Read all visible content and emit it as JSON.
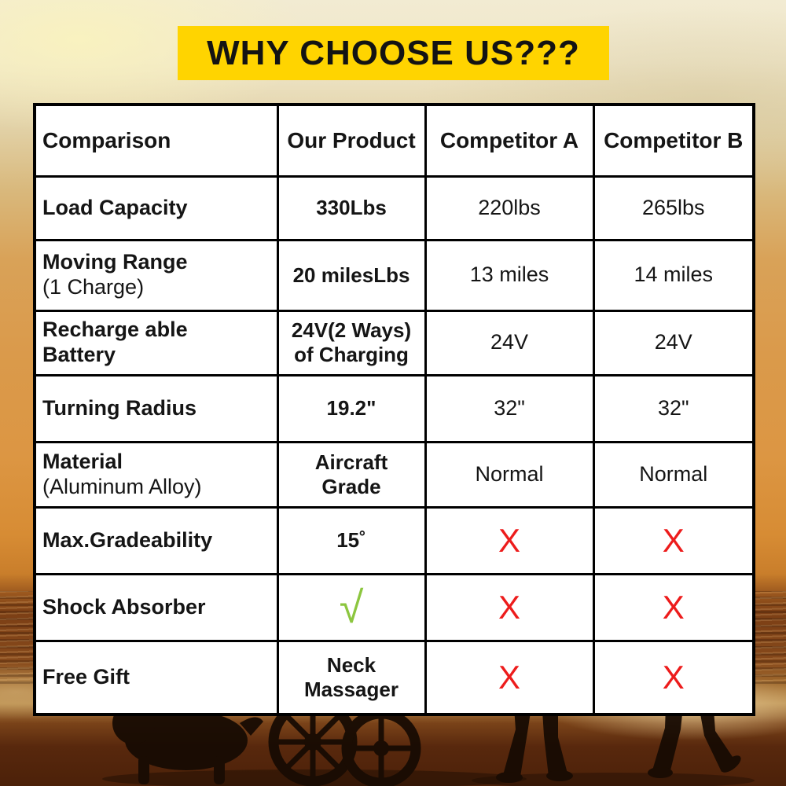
{
  "banner": {
    "text": "WHY CHOOSE US???",
    "bg_color": "#FFD400",
    "text_color": "#131313"
  },
  "symbol_colors": {
    "check_green": "#8CC63F",
    "cross_red": "#ED1C1C"
  },
  "comparison_table": {
    "columns": [
      "Comparison",
      "Our Product",
      "Competitor A",
      "Competitor B"
    ],
    "rows": [
      {
        "feature": {
          "lines": [
            {
              "text": "Load Capacity",
              "bold": true
            }
          ]
        },
        "ours": {
          "lines": [
            {
              "text": "330Lbs",
              "bold": true
            }
          ]
        },
        "competitor_a": {
          "lines": [
            {
              "text": "220lbs"
            }
          ]
        },
        "competitor_b": {
          "lines": [
            {
              "text": "265lbs"
            }
          ]
        }
      },
      {
        "feature": {
          "lines": [
            {
              "text": "Moving Range",
              "bold": true
            },
            {
              "text": "(1 Charge)"
            }
          ]
        },
        "ours": {
          "lines": [
            {
              "text": "20 milesLbs",
              "bold": true
            }
          ]
        },
        "competitor_a": {
          "lines": [
            {
              "text": "13 miles"
            }
          ]
        },
        "competitor_b": {
          "lines": [
            {
              "text": "14 miles"
            }
          ]
        }
      },
      {
        "feature": {
          "lines": [
            {
              "text": "Recharge able",
              "bold": true
            },
            {
              "text": "Battery",
              "bold": true
            }
          ]
        },
        "ours": {
          "lines": [
            {
              "text": "24V(2 Ways)",
              "bold": true
            },
            {
              "text": "of Charging",
              "bold": true
            }
          ]
        },
        "competitor_a": {
          "lines": [
            {
              "text": "24V"
            }
          ]
        },
        "competitor_b": {
          "lines": [
            {
              "text": "24V"
            }
          ]
        }
      },
      {
        "feature": {
          "lines": [
            {
              "text": "Turning Radius",
              "bold": true
            }
          ]
        },
        "ours": {
          "lines": [
            {
              "text": "19.2\"",
              "bold": true
            }
          ]
        },
        "competitor_a": {
          "lines": [
            {
              "text": "32\""
            }
          ]
        },
        "competitor_b": {
          "lines": [
            {
              "text": "32\""
            }
          ]
        }
      },
      {
        "feature": {
          "lines": [
            {
              "text": "Material",
              "bold": true
            },
            {
              "text": "(Aluminum Alloy)"
            }
          ]
        },
        "ours": {
          "lines": [
            {
              "text": "Aircraft",
              "bold": true
            },
            {
              "text": "Grade",
              "bold": true
            }
          ]
        },
        "competitor_a": {
          "lines": [
            {
              "text": "Normal"
            }
          ]
        },
        "competitor_b": {
          "lines": [
            {
              "text": "Normal"
            }
          ]
        }
      },
      {
        "feature": {
          "lines": [
            {
              "text": "Max.Gradeability",
              "bold": true
            }
          ]
        },
        "ours": {
          "lines": [
            {
              "text": "15˚",
              "bold": true
            }
          ]
        },
        "competitor_a": {
          "symbol": "cross",
          "text": "X"
        },
        "competitor_b": {
          "symbol": "cross",
          "text": "X"
        }
      },
      {
        "feature": {
          "lines": [
            {
              "text": "Shock Absorber",
              "bold": true
            }
          ]
        },
        "ours": {
          "symbol": "check",
          "text": "√"
        },
        "competitor_a": {
          "symbol": "cross",
          "text": "X"
        },
        "competitor_b": {
          "symbol": "cross",
          "text": "X"
        }
      },
      {
        "feature": {
          "lines": [
            {
              "text": "Free Gift",
              "bold": true
            }
          ]
        },
        "ours": {
          "lines": [
            {
              "text": "Neck",
              "bold": true
            },
            {
              "text": "Massager",
              "bold": true
            }
          ]
        },
        "competitor_a": {
          "symbol": "cross",
          "text": "X"
        },
        "competitor_b": {
          "symbol": "cross",
          "text": "X"
        }
      }
    ]
  }
}
